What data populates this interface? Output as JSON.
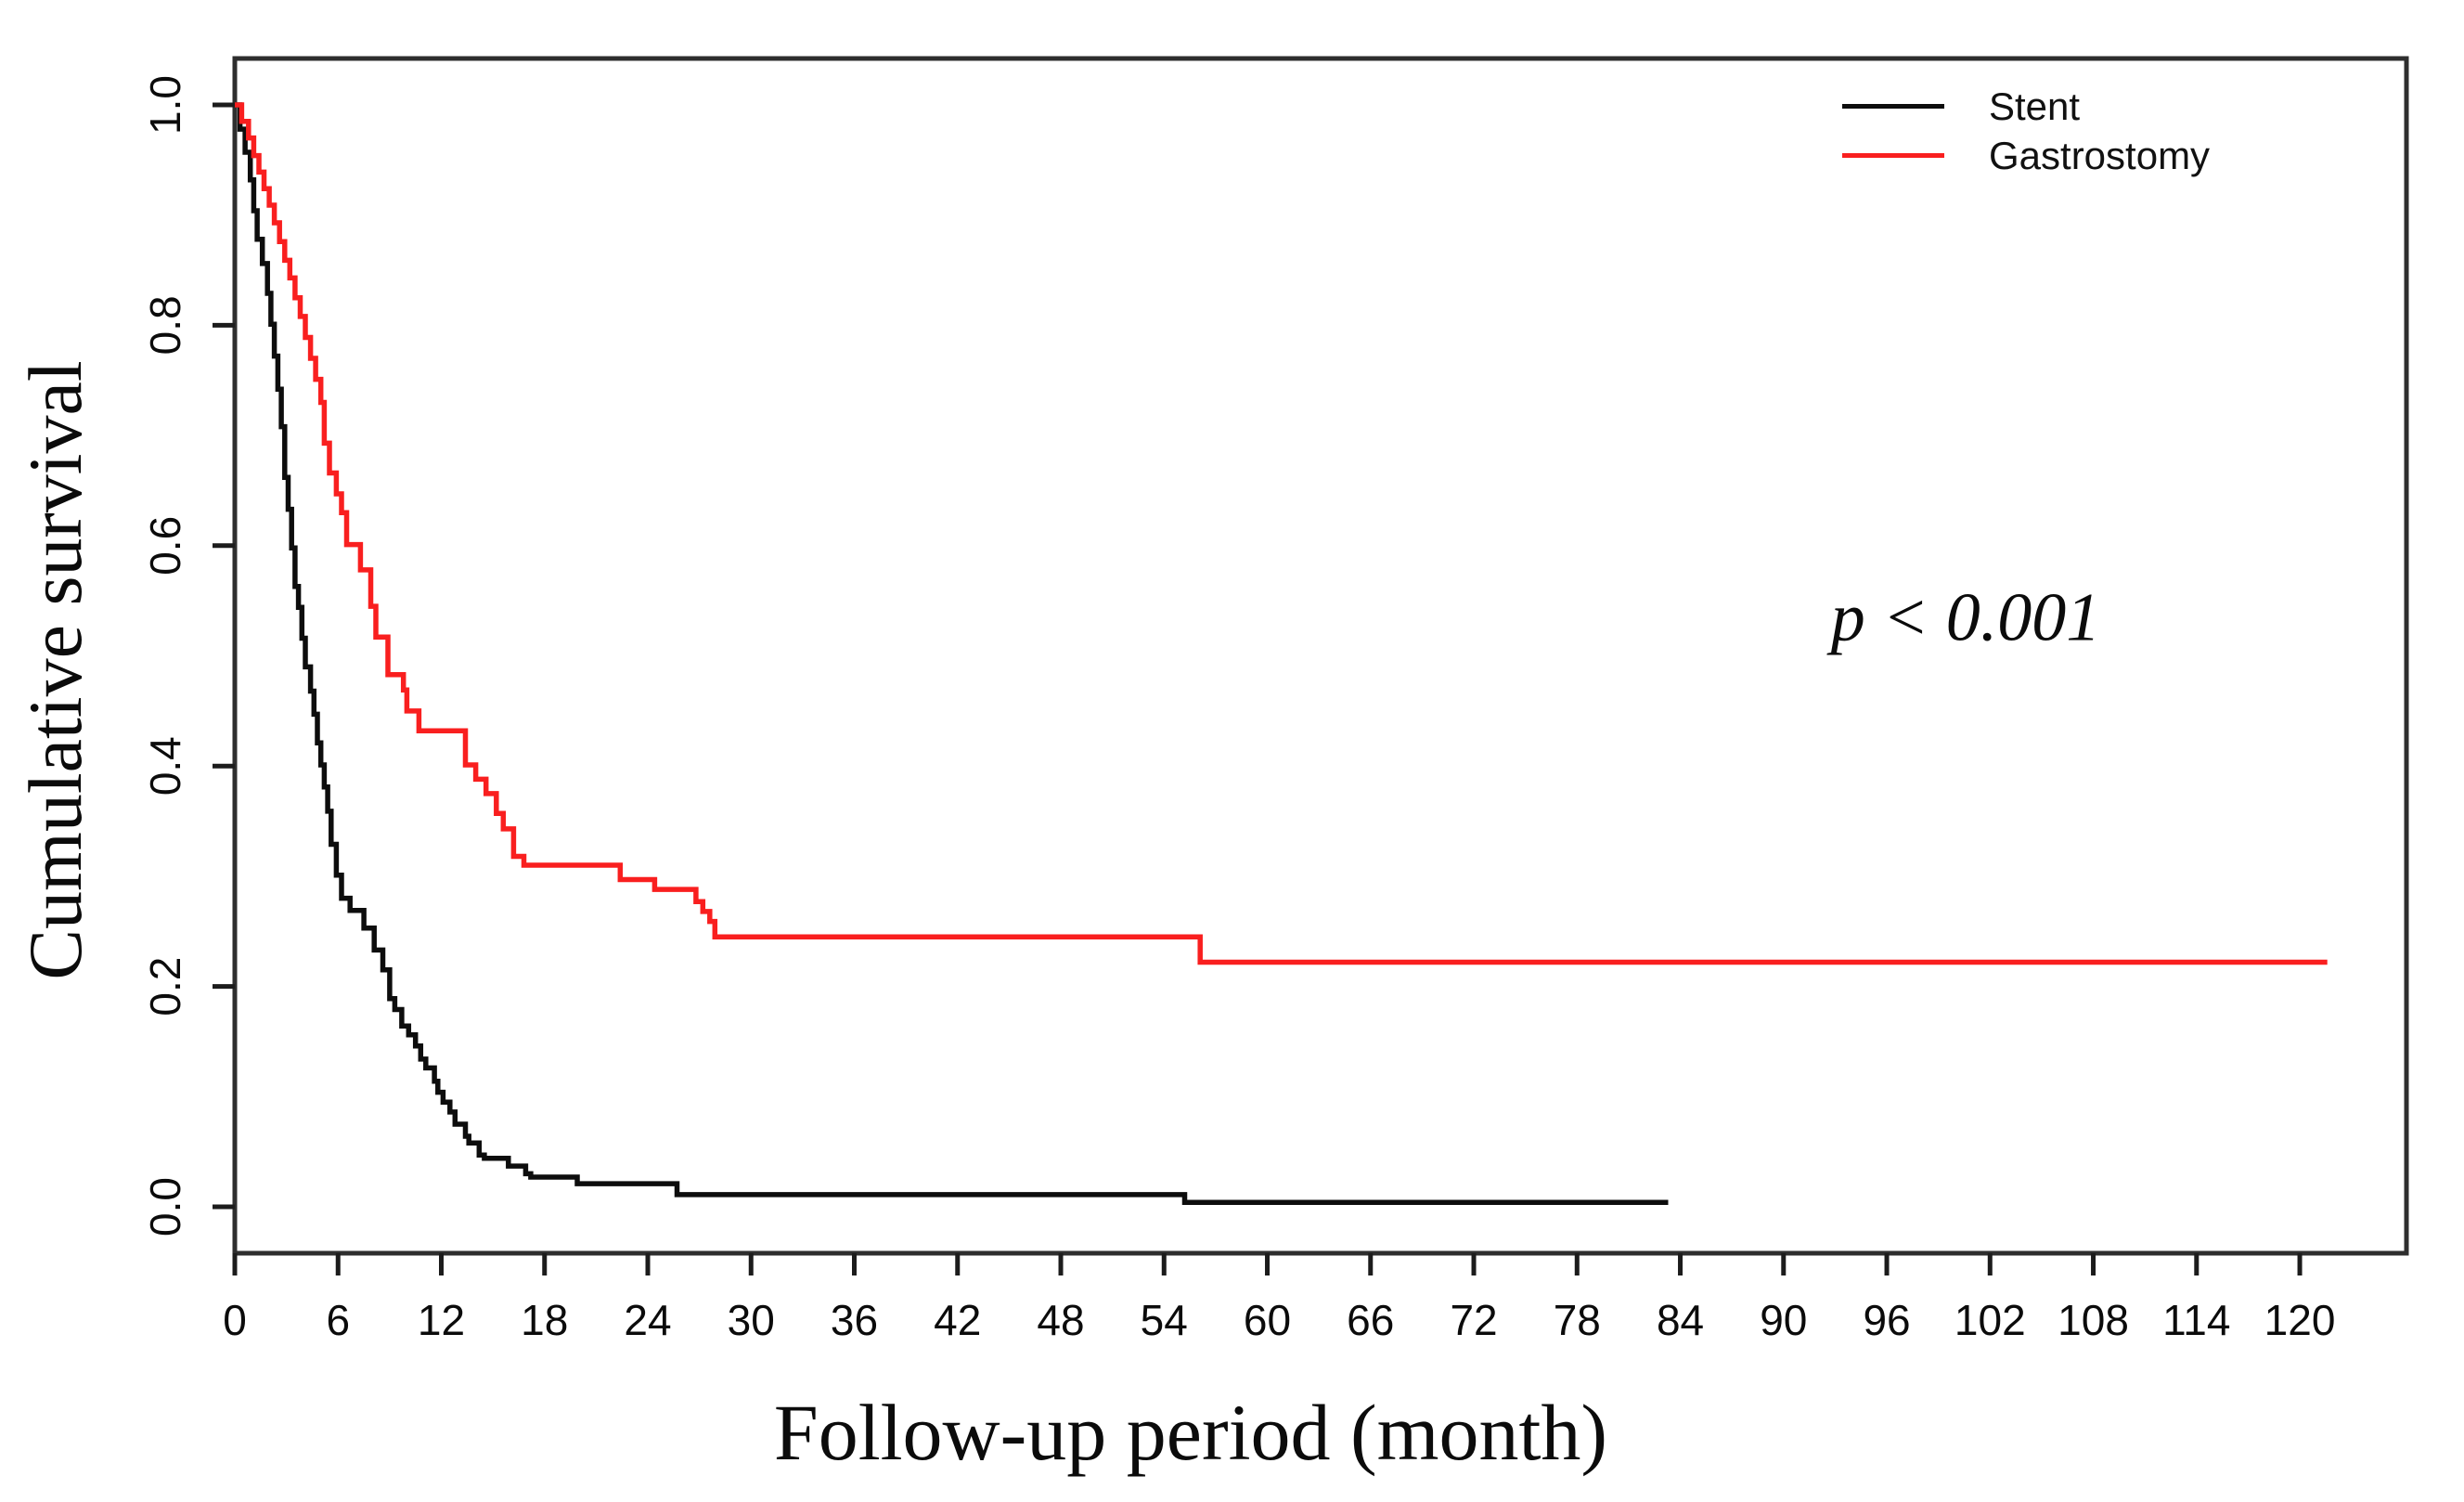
{
  "chart_data": {
    "type": "line",
    "subtype": "kaplan-meier-step",
    "title": "",
    "xlabel": "Follow-up period (month)",
    "ylabel": "Cumulative survival",
    "xlim": [
      0,
      126.2
    ],
    "ylim": [
      0,
      1.0
    ],
    "grid": false,
    "xticks": [
      0,
      6,
      12,
      18,
      24,
      30,
      36,
      42,
      48,
      54,
      60,
      66,
      72,
      78,
      84,
      90,
      96,
      102,
      108,
      114,
      120
    ],
    "ytick_labels": [
      "0.0",
      "0.2",
      "0.4",
      "0.6",
      "0.8",
      "1.0"
    ],
    "annotation": {
      "text": "p < 0.001"
    },
    "legend": {
      "position": "top-right",
      "entries": [
        {
          "label": "Stent",
          "color": "#0d0d0d"
        },
        {
          "label": "Gastrostomy",
          "color": "#f91f1f"
        }
      ]
    },
    "series": [
      {
        "name": "Stent",
        "color": "#0d0d0d",
        "step": true,
        "points": [
          [
            0,
            1.0
          ],
          [
            0.3,
            0.978
          ],
          [
            0.6,
            0.957
          ],
          [
            0.9,
            0.932
          ],
          [
            1.1,
            0.904
          ],
          [
            1.3,
            0.878
          ],
          [
            1.6,
            0.856
          ],
          [
            1.9,
            0.829
          ],
          [
            2.1,
            0.801
          ],
          [
            2.3,
            0.772
          ],
          [
            2.5,
            0.742
          ],
          [
            2.7,
            0.708
          ],
          [
            2.9,
            0.662
          ],
          [
            3.1,
            0.633
          ],
          [
            3.3,
            0.598
          ],
          [
            3.5,
            0.563
          ],
          [
            3.7,
            0.544
          ],
          [
            3.9,
            0.516
          ],
          [
            4.1,
            0.49
          ],
          [
            4.4,
            0.468
          ],
          [
            4.6,
            0.447
          ],
          [
            4.8,
            0.421
          ],
          [
            5.0,
            0.401
          ],
          [
            5.2,
            0.381
          ],
          [
            5.4,
            0.359
          ],
          [
            5.6,
            0.329
          ],
          [
            5.9,
            0.301
          ],
          [
            6.2,
            0.28
          ],
          [
            6.7,
            0.269
          ],
          [
            7.5,
            0.253
          ],
          [
            8.1,
            0.233
          ],
          [
            8.6,
            0.215
          ],
          [
            9.0,
            0.189
          ],
          [
            9.3,
            0.179
          ],
          [
            9.7,
            0.164
          ],
          [
            10.1,
            0.156
          ],
          [
            10.5,
            0.146
          ],
          [
            10.8,
            0.134
          ],
          [
            11.1,
            0.126
          ],
          [
            11.6,
            0.114
          ],
          [
            11.8,
            0.104
          ],
          [
            12.1,
            0.095
          ],
          [
            12.5,
            0.086
          ],
          [
            12.8,
            0.075
          ],
          [
            13.4,
            0.064
          ],
          [
            13.6,
            0.058
          ],
          [
            14.2,
            0.047
          ],
          [
            14.5,
            0.044
          ],
          [
            15.9,
            0.037
          ],
          [
            16.9,
            0.03
          ],
          [
            17.2,
            0.027
          ],
          [
            19.9,
            0.021
          ],
          [
            25.7,
            0.011
          ],
          [
            55.2,
            0.004
          ],
          [
            83.3,
            0.004
          ]
        ]
      },
      {
        "name": "Gastrostomy",
        "color": "#f91f1f",
        "step": true,
        "points": [
          [
            0,
            1.0
          ],
          [
            0.4,
            0.985
          ],
          [
            0.8,
            0.97
          ],
          [
            1.1,
            0.954
          ],
          [
            1.4,
            0.939
          ],
          [
            1.7,
            0.924
          ],
          [
            2.0,
            0.909
          ],
          [
            2.3,
            0.893
          ],
          [
            2.6,
            0.876
          ],
          [
            2.9,
            0.859
          ],
          [
            3.2,
            0.843
          ],
          [
            3.5,
            0.825
          ],
          [
            3.8,
            0.808
          ],
          [
            4.1,
            0.789
          ],
          [
            4.4,
            0.77
          ],
          [
            4.7,
            0.751
          ],
          [
            5.0,
            0.73
          ],
          [
            5.2,
            0.693
          ],
          [
            5.5,
            0.666
          ],
          [
            5.9,
            0.647
          ],
          [
            6.2,
            0.63
          ],
          [
            6.5,
            0.601
          ],
          [
            7.3,
            0.578
          ],
          [
            7.9,
            0.545
          ],
          [
            8.2,
            0.517
          ],
          [
            8.9,
            0.483
          ],
          [
            9.8,
            0.469
          ],
          [
            10.0,
            0.45
          ],
          [
            10.7,
            0.432
          ],
          [
            13.4,
            0.401
          ],
          [
            14.0,
            0.388
          ],
          [
            14.6,
            0.375
          ],
          [
            15.2,
            0.357
          ],
          [
            15.6,
            0.343
          ],
          [
            16.2,
            0.318
          ],
          [
            16.8,
            0.31
          ],
          [
            22.4,
            0.297
          ],
          [
            24.4,
            0.288
          ],
          [
            26.8,
            0.277
          ],
          [
            27.2,
            0.268
          ],
          [
            27.6,
            0.259
          ],
          [
            27.9,
            0.245
          ],
          [
            56.1,
            0.222
          ],
          [
            121.6,
            0.222
          ]
        ]
      }
    ]
  }
}
